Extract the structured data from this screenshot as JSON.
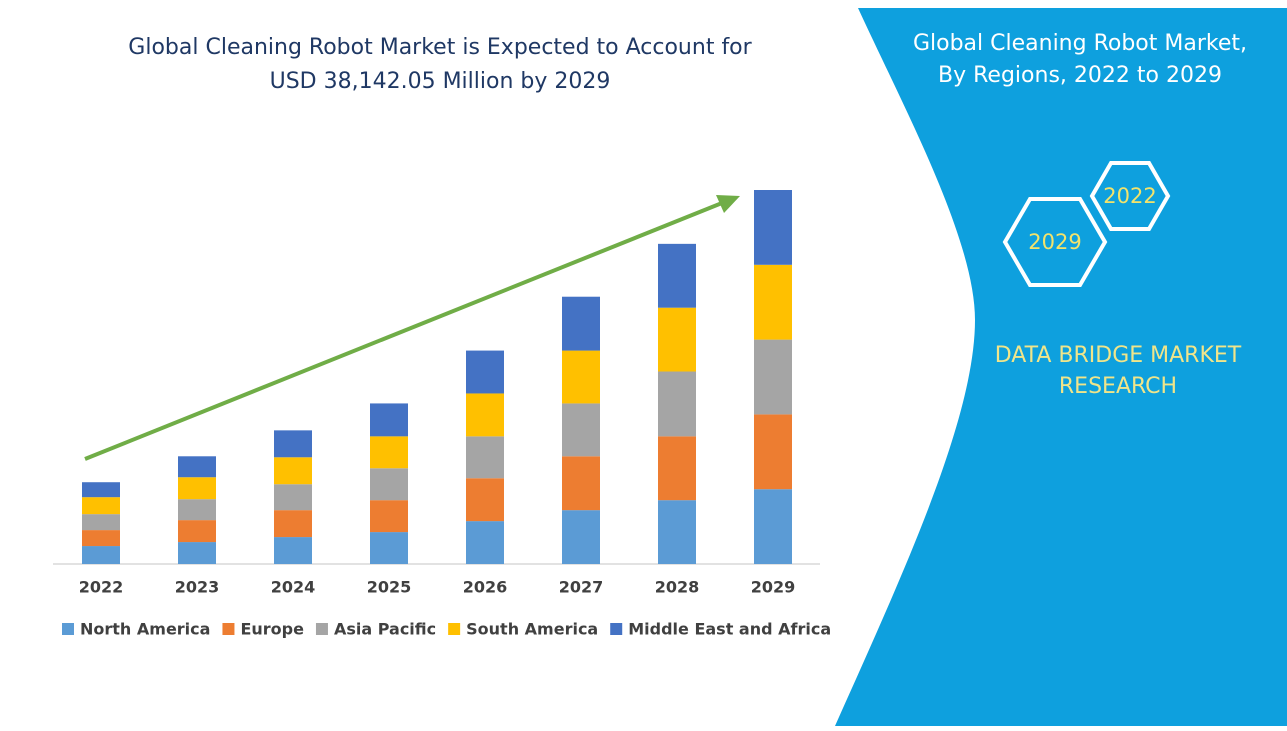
{
  "chart_data": {
    "type": "bar",
    "stacked": true,
    "title": [
      "Global Cleaning Robot Market is Expected to Account for",
      "USD 38,142.05 Million by 2029"
    ],
    "categories": [
      "2022",
      "2023",
      "2024",
      "2025",
      "2026",
      "2027",
      "2028",
      "2029"
    ],
    "series": [
      {
        "name": "North America",
        "color": "#5b9bd5",
        "values": [
          18,
          22,
          27,
          32,
          43,
          54,
          64,
          75
        ]
      },
      {
        "name": "Europe",
        "color": "#ed7d31",
        "values": [
          16,
          22,
          27,
          32,
          43,
          54,
          64,
          75
        ]
      },
      {
        "name": "Asia Pacific",
        "color": "#a5a5a5",
        "values": [
          16,
          21,
          26,
          32,
          42,
          53,
          65,
          75
        ]
      },
      {
        "name": "South America",
        "color": "#ffc000",
        "values": [
          17,
          22,
          27,
          32,
          43,
          53,
          64,
          75
        ]
      },
      {
        "name": "Middle East and Africa",
        "color": "#4472c4",
        "values": [
          15,
          21,
          27,
          33,
          43,
          54,
          64,
          75
        ]
      }
    ]
  },
  "panel": {
    "title": [
      "Global Cleaning Robot Market,",
      "By Regions, 2022 to 2029"
    ],
    "hexagons": [
      "2022",
      "2029"
    ],
    "brand": [
      "DATA BRIDGE MARKET",
      "RESEARCH"
    ]
  }
}
